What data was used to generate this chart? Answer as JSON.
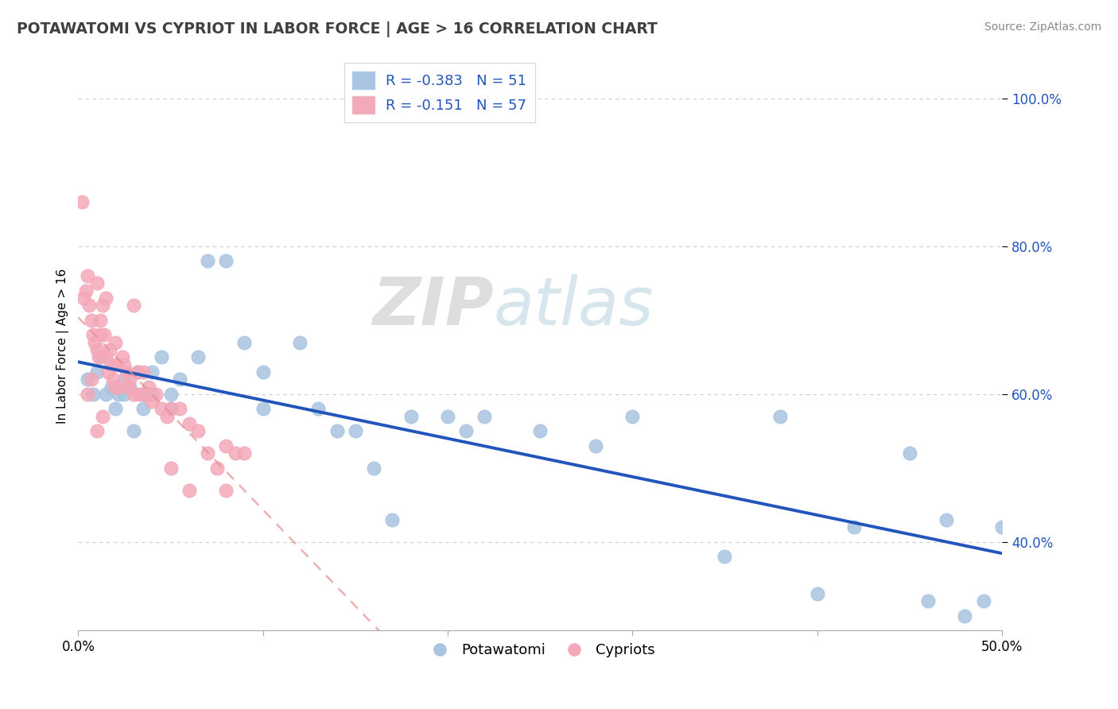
{
  "title": "POTAWATOMI VS CYPRIOT IN LABOR FORCE | AGE > 16 CORRELATION CHART",
  "source_text": "Source: ZipAtlas.com",
  "ylabel": "In Labor Force | Age > 16",
  "xlim": [
    0.0,
    0.5
  ],
  "ylim": [
    0.28,
    1.05
  ],
  "x_ticks": [
    0.0,
    0.1,
    0.2,
    0.3,
    0.4,
    0.5
  ],
  "x_tick_labels": [
    "0.0%",
    "",
    "",
    "",
    "",
    "50.0%"
  ],
  "y_ticks": [
    0.4,
    0.6,
    0.8,
    1.0
  ],
  "legend_r1": "R = -0.383",
  "legend_n1": "N = 51",
  "legend_r2": "R = -0.151",
  "legend_n2": "N = 57",
  "watermark_zip": "ZIP",
  "watermark_atlas": "atlas",
  "blue_color": "#a8c4e0",
  "pink_color": "#f4a8b8",
  "line_blue": "#2255bb",
  "line_pink": "#e09090",
  "potawatomi_x": [
    0.005,
    0.008,
    0.01,
    0.012,
    0.015,
    0.018,
    0.02,
    0.022,
    0.025,
    0.025,
    0.028,
    0.03,
    0.032,
    0.035,
    0.035,
    0.038,
    0.04,
    0.04,
    0.045,
    0.05,
    0.05,
    0.055,
    0.065,
    0.07,
    0.08,
    0.09,
    0.1,
    0.1,
    0.12,
    0.13,
    0.14,
    0.15,
    0.16,
    0.17,
    0.18,
    0.2,
    0.21,
    0.22,
    0.25,
    0.28,
    0.3,
    0.35,
    0.38,
    0.4,
    0.42,
    0.45,
    0.46,
    0.47,
    0.48,
    0.49,
    0.5
  ],
  "potawatomi_y": [
    0.62,
    0.6,
    0.63,
    0.65,
    0.6,
    0.61,
    0.58,
    0.6,
    0.6,
    0.62,
    0.61,
    0.55,
    0.63,
    0.6,
    0.58,
    0.6,
    0.63,
    0.6,
    0.65,
    0.6,
    0.58,
    0.62,
    0.65,
    0.78,
    0.78,
    0.67,
    0.63,
    0.58,
    0.67,
    0.58,
    0.55,
    0.55,
    0.5,
    0.43,
    0.57,
    0.57,
    0.55,
    0.57,
    0.55,
    0.53,
    0.57,
    0.38,
    0.57,
    0.33,
    0.42,
    0.52,
    0.32,
    0.43,
    0.3,
    0.32,
    0.42
  ],
  "cypriot_x": [
    0.002,
    0.003,
    0.004,
    0.005,
    0.006,
    0.007,
    0.008,
    0.009,
    0.01,
    0.01,
    0.011,
    0.012,
    0.012,
    0.013,
    0.014,
    0.015,
    0.015,
    0.016,
    0.017,
    0.018,
    0.019,
    0.02,
    0.02,
    0.021,
    0.022,
    0.024,
    0.025,
    0.026,
    0.027,
    0.028,
    0.03,
    0.03,
    0.032,
    0.033,
    0.035,
    0.036,
    0.038,
    0.04,
    0.042,
    0.045,
    0.048,
    0.05,
    0.055,
    0.06,
    0.065,
    0.07,
    0.075,
    0.08,
    0.085,
    0.09,
    0.005,
    0.007,
    0.01,
    0.013,
    0.05,
    0.06,
    0.08
  ],
  "cypriot_y": [
    0.86,
    0.73,
    0.74,
    0.76,
    0.72,
    0.7,
    0.68,
    0.67,
    0.75,
    0.66,
    0.65,
    0.7,
    0.68,
    0.72,
    0.68,
    0.73,
    0.65,
    0.63,
    0.66,
    0.64,
    0.62,
    0.67,
    0.61,
    0.64,
    0.61,
    0.65,
    0.64,
    0.63,
    0.61,
    0.62,
    0.72,
    0.6,
    0.63,
    0.6,
    0.63,
    0.6,
    0.61,
    0.59,
    0.6,
    0.58,
    0.57,
    0.58,
    0.58,
    0.56,
    0.55,
    0.52,
    0.5,
    0.53,
    0.52,
    0.52,
    0.6,
    0.62,
    0.55,
    0.57,
    0.5,
    0.47,
    0.47
  ]
}
